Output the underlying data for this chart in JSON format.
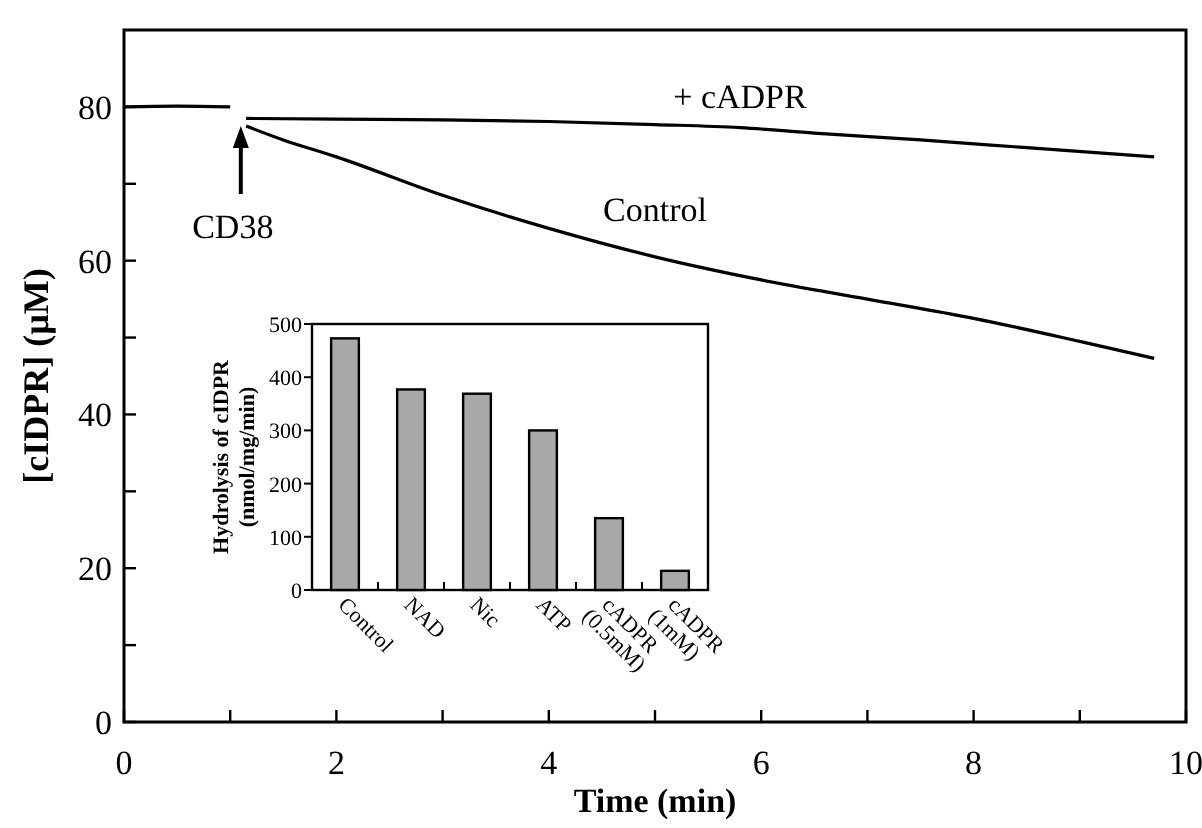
{
  "chart_data": [
    {
      "type": "line",
      "xlabel": "Time (min)",
      "ylabel": "[cIDPR] (µM)",
      "xlim": [
        0,
        10
      ],
      "ylim": [
        0,
        90
      ],
      "xticks": [
        0,
        {
          "value": 1,
          "label": null
        },
        2,
        {
          "value": 3,
          "label": null
        },
        4,
        {
          "value": 5,
          "label": null
        },
        6,
        {
          "value": 7,
          "label": null
        },
        8,
        {
          "value": 9,
          "label": null
        },
        10
      ],
      "yticks": [
        0,
        {
          "value": 10,
          "label": null
        },
        20,
        {
          "value": 30,
          "label": null
        },
        40,
        {
          "value": 50,
          "label": null
        },
        60,
        {
          "value": 70,
          "label": null
        },
        80
      ],
      "marker": "none",
      "line_style": "solid",
      "grid": false,
      "series": [
        {
          "color": "#000000",
          "x": [
            0,
            0.5,
            1.0
          ],
          "values": [
            80,
            80.1,
            80
          ]
        },
        {
          "name": "+ cADPR",
          "color": "#000000",
          "x": [
            1.15,
            2,
            3,
            4,
            5,
            5.8,
            6.5,
            7.5,
            8.5,
            9.7
          ],
          "values": [
            78.5,
            78.4,
            78.3,
            78.1,
            77.7,
            77.3,
            76.6,
            75.7,
            74.7,
            73.5
          ]
        },
        {
          "name": "Control",
          "color": "#000000",
          "x": [
            1.15,
            1.5,
            2,
            3,
            4,
            5,
            6,
            7,
            8,
            9,
            9.7
          ],
          "values": [
            77.5,
            75.7,
            73.5,
            68.5,
            64.2,
            60.5,
            57.5,
            55,
            52.5,
            49.5,
            47.3
          ]
        }
      ],
      "annotations": [
        {
          "text": "CD38",
          "x": 1.1,
          "y": 77.5
        }
      ]
    },
    {
      "type": "bar",
      "ylabel": "Hydrolysis of cIDPR\n(nmol/mg/min)",
      "categories": [
        "Control",
        "NAD",
        "Nic",
        "ATP",
        "cADPR\n(0.5mM)",
        "cADPR\n(1mM)"
      ],
      "values": [
        473,
        377,
        369,
        300,
        135,
        36
      ],
      "color": "#a8a8a8",
      "ylim": [
        0,
        500
      ],
      "yticks": [
        0,
        100,
        200,
        300,
        400,
        500
      ]
    }
  ]
}
